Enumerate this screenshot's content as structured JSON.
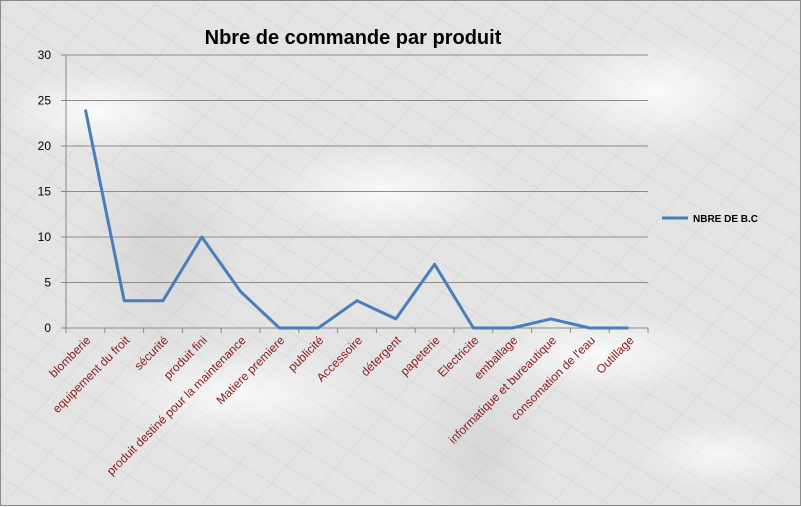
{
  "chart_data": {
    "type": "line",
    "title": "Nbre de commande par produit",
    "xlabel": "",
    "ylabel": "",
    "categories": [
      "blomberie",
      "equipement du froit",
      "sécurité",
      "produit fini",
      "produit destiné pour la maintenance",
      "Matiere premiere",
      "publicité",
      "Accessoire",
      "détergent",
      "papeterie",
      "Electricite",
      "emballage",
      "informatique et bureautique",
      "consomation de l'eau",
      "Outillage"
    ],
    "series": [
      {
        "name": "NBRE DE B.C",
        "values": [
          24,
          3,
          3,
          10,
          4,
          0,
          0,
          3,
          1,
          7,
          0,
          0,
          1,
          0,
          0
        ],
        "color": "#4a7ebb"
      }
    ],
    "ylim": [
      0,
      30
    ],
    "yticks": [
      "0",
      "5",
      "10",
      "15",
      "20",
      "25",
      "30"
    ],
    "grid": true,
    "legend_position": "right",
    "tick_label_color": "#8b1a1a"
  }
}
